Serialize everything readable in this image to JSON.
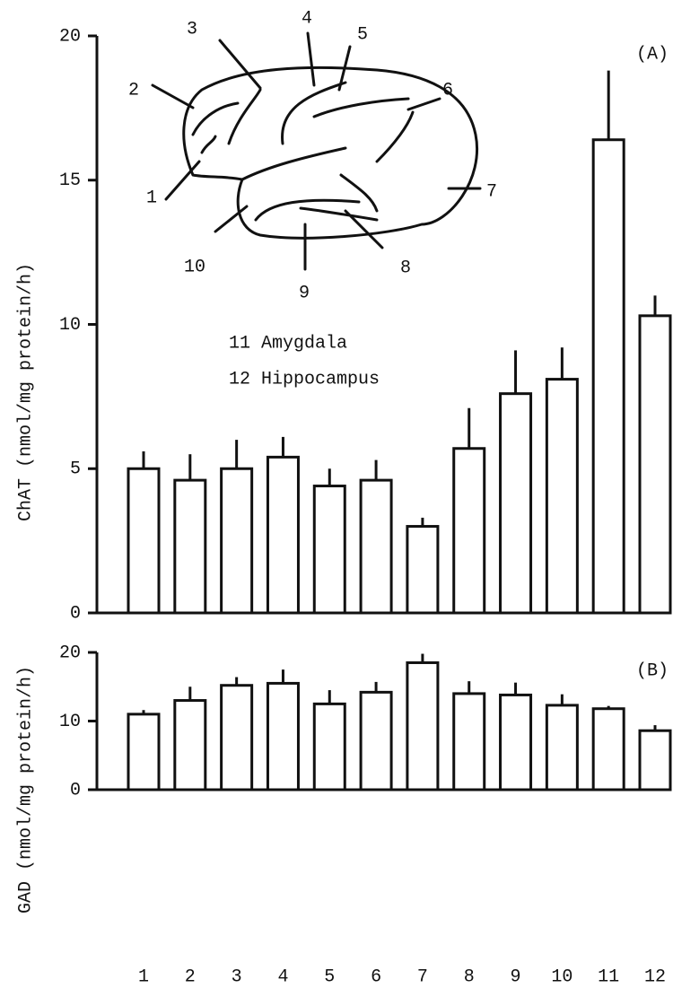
{
  "chart_data": [
    {
      "type": "bar",
      "panel_label": "(A)",
      "y_label": "ChAT (nmol/mg protein/h)",
      "ylim": [
        0,
        20
      ],
      "yticks": [
        0,
        5,
        10,
        15,
        20
      ],
      "values": [
        5.0,
        4.6,
        5.0,
        5.4,
        4.4,
        4.6,
        3.0,
        5.7,
        7.6,
        8.1,
        16.4,
        10.3
      ],
      "errors": [
        0.6,
        0.9,
        1.0,
        0.7,
        0.6,
        0.7,
        0.3,
        1.4,
        1.5,
        1.1,
        2.4,
        0.7
      ],
      "color": "#ffffff",
      "annotations": {
        "region_numbers": [
          "1",
          "2",
          "3",
          "4",
          "5",
          "6",
          "7",
          "8",
          "9",
          "10"
        ],
        "legend_lines": [
          "11 Amygdala",
          "12 Hippocampus"
        ]
      }
    },
    {
      "type": "bar",
      "panel_label": "(B)",
      "y_label": "GAD (nmol/mg protein/h)",
      "ylim": [
        0,
        20
      ],
      "yticks": [
        0,
        10,
        20
      ],
      "categories": [
        "1",
        "2",
        "3",
        "4",
        "5",
        "6",
        "7",
        "8",
        "9",
        "10",
        "11",
        "12"
      ],
      "values": [
        11.0,
        13.0,
        15.2,
        15.5,
        12.5,
        14.2,
        18.5,
        14.0,
        13.8,
        12.3,
        11.8,
        8.6
      ],
      "errors": [
        0.6,
        2.0,
        1.2,
        2.0,
        2.0,
        1.5,
        1.3,
        1.8,
        1.8,
        1.6,
        0.4,
        0.8
      ],
      "color": "#ffffff"
    }
  ]
}
